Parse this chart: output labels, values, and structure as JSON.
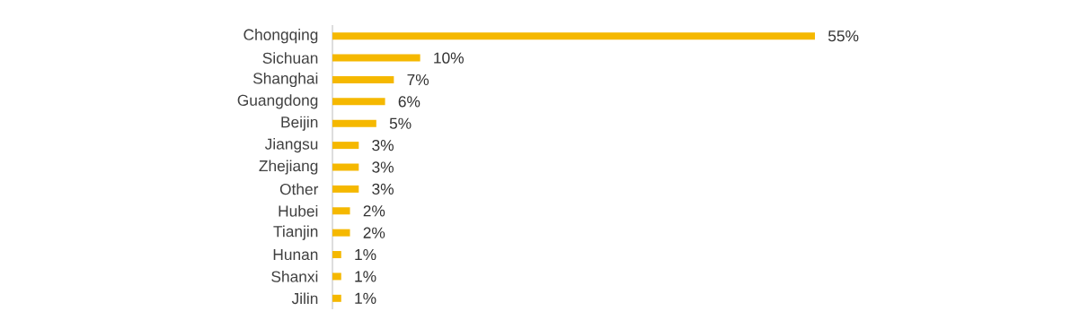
{
  "chart_data": {
    "type": "bar",
    "orientation": "horizontal",
    "categories": [
      "Chongqing",
      "Sichuan",
      "Shanghai",
      "Guangdong",
      "Beijin",
      "Jiangsu",
      "Zhejiang",
      "Other",
      "Hubei",
      "Tianjin",
      "Hunan",
      "Shanxi",
      "Jilin"
    ],
    "values": [
      55,
      10,
      7,
      6,
      5,
      3,
      3,
      3,
      2,
      2,
      1,
      1,
      1
    ],
    "value_labels": [
      "55%",
      "10%",
      "7%",
      "6%",
      "5%",
      "3%",
      "3%",
      "3%",
      "2%",
      "2%",
      "1%",
      "1%",
      "1%"
    ],
    "color": "#f5b800"
  }
}
